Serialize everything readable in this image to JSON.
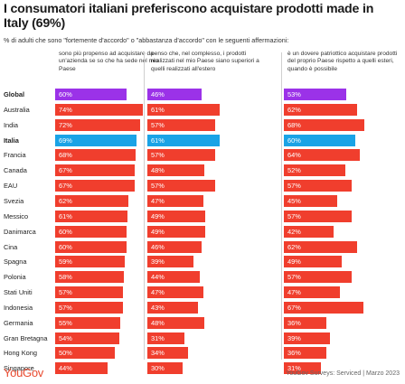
{
  "title": "I consumatori italiani preferiscono acquistare prodotti made in Italy (69%)",
  "subtitle": "% di adulti che sono \"fortemente d'accordo\" o \"abbastanza d'accordo\" con le seguenti affermazioni:",
  "footer": {
    "logo": "YouGov",
    "source": "YouGov Surveys: Serviced | Marzo 2023"
  },
  "colors": {
    "default": "#f03e2d",
    "global": "#9b32e8",
    "italia": "#1aa3e6"
  },
  "chart_data": {
    "type": "bar",
    "orientation": "horizontal",
    "value_unit": "%",
    "xlim": [
      0,
      100
    ],
    "grid": false,
    "legend": "none",
    "categories": [
      "Global",
      "Australia",
      "India",
      "Italia",
      "Francia",
      "Canada",
      "EAU",
      "Svezia",
      "Messico",
      "Danimarca",
      "Cina",
      "Spagna",
      "Polonia",
      "Stati Uniti",
      "Indonesia",
      "Germania",
      "Gran Bretagna",
      "Hong Kong",
      "Singapore"
    ],
    "highlight": {
      "Global": "global",
      "Italia": "italia"
    },
    "series": [
      {
        "name": "sono più propenso ad acquistare da un'azienda se so che ha sede nel mio Paese",
        "values": [
          60,
          74,
          72,
          69,
          68,
          67,
          67,
          62,
          61,
          60,
          60,
          59,
          58,
          57,
          57,
          55,
          54,
          50,
          44
        ]
      },
      {
        "name": "penso che, nel complesso, i prodotti realizzati nel mio Paese siano superiori a quelli realizzati all'estero",
        "values": [
          46,
          61,
          57,
          61,
          57,
          48,
          57,
          47,
          49,
          49,
          46,
          39,
          44,
          47,
          43,
          48,
          31,
          34,
          30
        ]
      },
      {
        "name": "è un dovere patriottico acquistare prodotti del proprio Paese rispetto a quelli esteri, quando è possibile",
        "values": [
          53,
          62,
          68,
          60,
          64,
          52,
          57,
          45,
          57,
          42,
          62,
          49,
          57,
          47,
          67,
          36,
          39,
          36,
          31
        ]
      }
    ]
  }
}
